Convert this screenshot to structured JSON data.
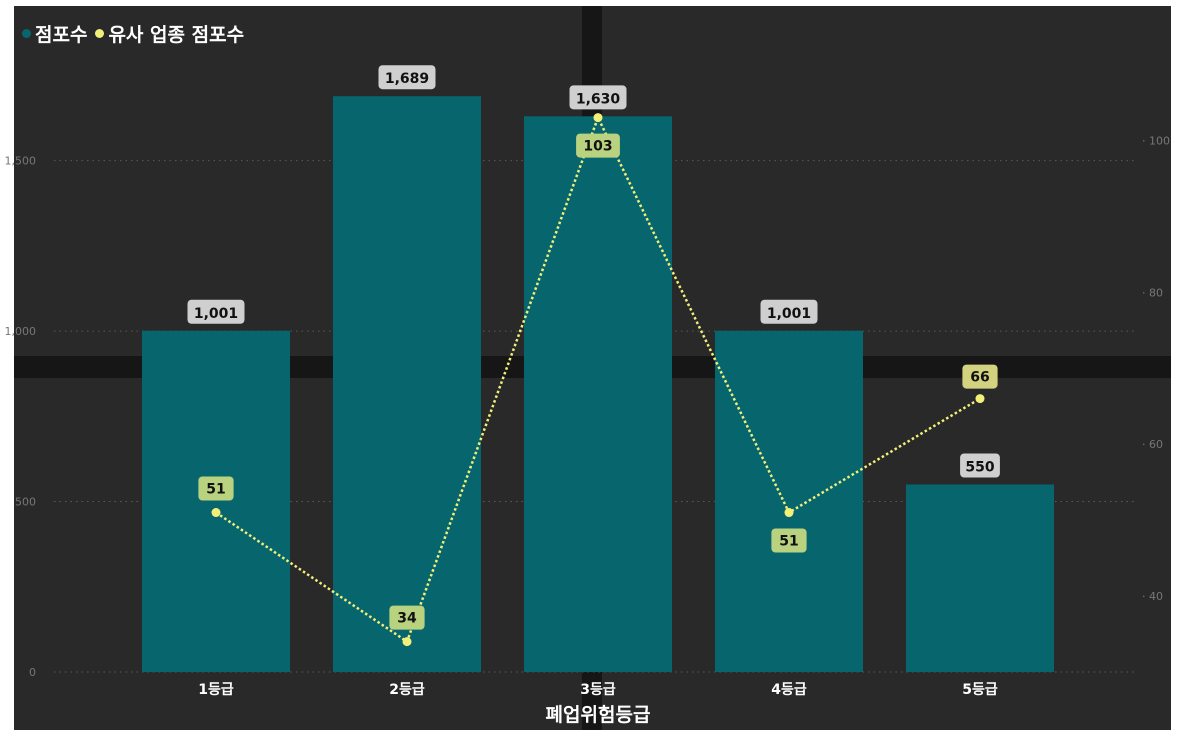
{
  "chart_data": {
    "type": "bar",
    "xlabel": "폐업위험등급",
    "categories": [
      "1등급",
      "2등급",
      "3등급",
      "4등급",
      "5등급"
    ],
    "series": [
      {
        "name": "점포수",
        "type": "bar",
        "axis": "left",
        "color": "#07666d",
        "values": [
          1001,
          1689,
          1630,
          1001,
          550
        ],
        "labels": [
          "1,001",
          "1,689",
          "1,630",
          "1,001",
          "550"
        ]
      },
      {
        "name": "유사 업종 점포수",
        "type": "line",
        "axis": "right",
        "color": "#f3f07a",
        "values": [
          51,
          34,
          103,
          51,
          66
        ],
        "labels": [
          "51",
          "34",
          "103",
          "51",
          "66"
        ]
      }
    ],
    "y_left": {
      "ticks": [
        0,
        500,
        1000,
        1500
      ],
      "tick_labels": [
        "0",
        "500",
        "1,000",
        "1,500"
      ],
      "range": [
        0,
        1760
      ]
    },
    "y_right": {
      "ticks": [
        40,
        60,
        80,
        100
      ],
      "tick_labels": [
        "40",
        "60",
        "80",
        "100"
      ],
      "range": [
        30,
        104
      ]
    },
    "grid": true,
    "legend_position": "top-left"
  }
}
